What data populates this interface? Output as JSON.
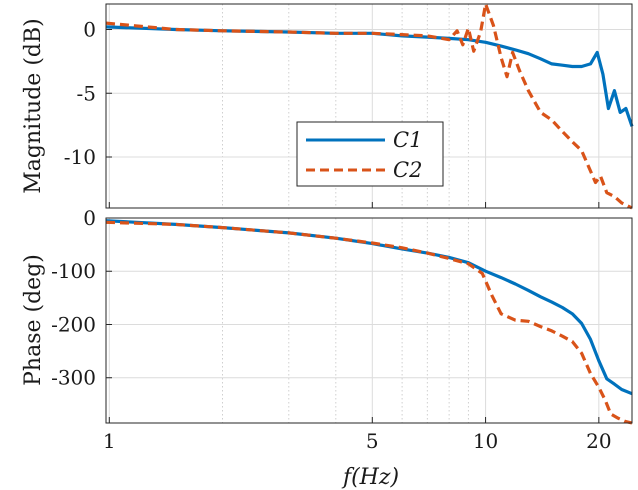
{
  "chart_data": {
    "type": "line",
    "x_scale": "log",
    "grid": true,
    "xlim": [
      0.98,
      24.5
    ],
    "xticks": [
      1,
      5,
      10,
      20
    ],
    "xtick_labels": [
      "1",
      "5",
      "10",
      "20"
    ],
    "xlabel": "f(Hz)",
    "colors": {
      "C1": "#0072BD",
      "C2": "#D95319"
    },
    "legend": {
      "placement": "inside-bottom-center of top panel",
      "entries": [
        "C1",
        "C2"
      ]
    },
    "panels": [
      {
        "id": "magnitude",
        "ylabel": "Magnitude (dB)",
        "ylim": [
          -14,
          2
        ],
        "yticks": [
          0,
          -5,
          -10
        ],
        "ytick_labels": [
          "0",
          "-5",
          "-10"
        ],
        "series": [
          {
            "name": "C1",
            "x": [
              0.98,
              1.5,
              2,
              3,
              4,
              5,
              6,
              7,
              8,
              9,
              10,
              11,
              12,
              13,
              14,
              15,
              16,
              17,
              18,
              19,
              19.8,
              20.5,
              21.2,
              22,
              22.8,
              23.6,
              24.5
            ],
            "y": [
              0.2,
              0,
              -0.1,
              -0.2,
              -0.3,
              -0.3,
              -0.5,
              -0.6,
              -0.7,
              -0.8,
              -1.0,
              -1.3,
              -1.6,
              -1.9,
              -2.3,
              -2.7,
              -2.8,
              -2.9,
              -2.9,
              -2.7,
              -1.8,
              -3.5,
              -6.2,
              -4.8,
              -6.5,
              -6.2,
              -7.6
            ]
          },
          {
            "name": "C2",
            "x": [
              0.98,
              1.5,
              2,
              3,
              4,
              5,
              6,
              7,
              8,
              8.4,
              8.7,
              9.0,
              9.3,
              9.7,
              10.0,
              10.5,
              11.0,
              11.4,
              11.8,
              12.3,
              13,
              14,
              15,
              16,
              17,
              18,
              19,
              19.6,
              20.2,
              21,
              22,
              23,
              24.5
            ],
            "y": [
              0.5,
              0,
              -0.1,
              -0.2,
              -0.3,
              -0.3,
              -0.4,
              -0.5,
              -0.8,
              -0.1,
              -1.2,
              0.1,
              -1.7,
              -0.2,
              2.0,
              0.3,
              -2.2,
              -3.7,
              -1.8,
              -3.2,
              -4.8,
              -6.5,
              -7.1,
              -8.0,
              -8.8,
              -9.5,
              -11.1,
              -12.0,
              -11.5,
              -12.8,
              -13.1,
              -13.6,
              -14.0
            ]
          }
        ]
      },
      {
        "id": "phase",
        "ylabel": "Phase (deg)",
        "ylim": [
          -385,
          0
        ],
        "yticks": [
          0,
          -100,
          -200,
          -300
        ],
        "ytick_labels": [
          "0",
          "-100",
          "-200",
          "-300"
        ],
        "series": [
          {
            "name": "C1",
            "x": [
              0.98,
              1.5,
              2,
              3,
              4,
              5,
              6,
              7,
              8,
              9,
              10,
              11,
              12,
              13,
              14,
              15,
              16,
              17,
              18,
              19,
              20,
              21,
              22,
              23,
              24.5
            ],
            "y": [
              -5,
              -12,
              -18,
              -28,
              -38,
              -48,
              -58,
              -66,
              -74,
              -84,
              -100,
              -112,
              -124,
              -136,
              -148,
              -158,
              -168,
              -180,
              -198,
              -228,
              -268,
              -302,
              -312,
              -322,
              -330
            ]
          },
          {
            "name": "C2",
            "x": [
              0.98,
              1.5,
              2,
              3,
              4,
              5,
              6,
              7,
              8,
              9,
              9.8,
              10.4,
              11,
              12,
              13,
              14,
              15,
              16,
              17,
              18,
              19,
              20,
              20.8,
              21.5,
              22.5,
              23.5,
              24.5
            ],
            "y": [
              -8,
              -12,
              -18,
              -28,
              -38,
              -47,
              -56,
              -66,
              -76,
              -86,
              -104,
              -146,
              -180,
              -192,
              -194,
              -204,
              -212,
              -222,
              -232,
              -254,
              -292,
              -318,
              -342,
              -368,
              -376,
              -382,
              -385
            ]
          }
        ]
      }
    ]
  }
}
